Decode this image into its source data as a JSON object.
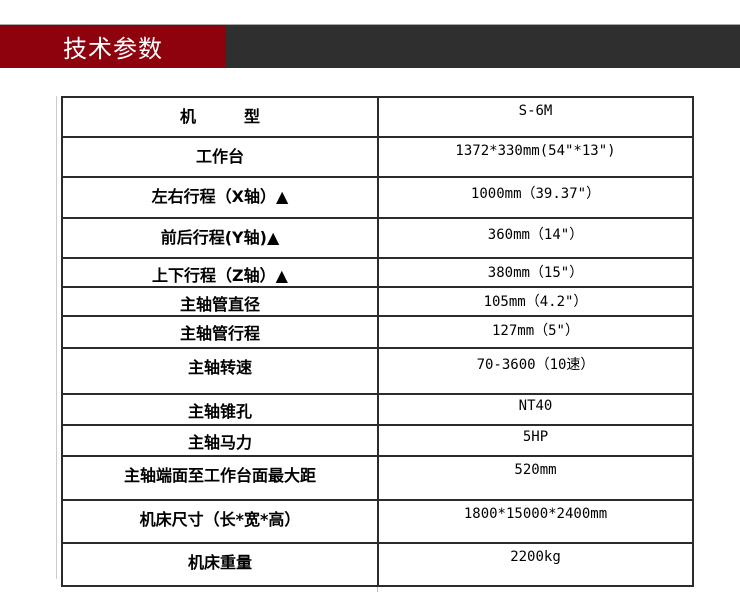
{
  "banner": {
    "title": "技术参数",
    "red_color": "#8e020e",
    "dark_color": "#2f2f2f"
  },
  "table": {
    "header_row": {
      "label": "机　　　型",
      "value": "S-6M"
    },
    "rows": [
      {
        "label": "工作台",
        "value": "1372*330mm(54\"*13\")"
      },
      {
        "label": "左右行程（X轴）▲",
        "value": "1000mm（39.37\"）"
      },
      {
        "label": "前后行程(Y轴)▲",
        "value": "360mm（14\"）"
      },
      {
        "label": "上下行程（Z轴）▲",
        "value": "380mm（15\"）"
      },
      {
        "label": "主轴管直径",
        "value": "105mm（4.2\"）"
      },
      {
        "label": "主轴管行程",
        "value": "127mm（5\"）"
      },
      {
        "label": "主轴转速",
        "value": "70-3600（10速）"
      },
      {
        "label": "主轴锥孔",
        "value": "NT40"
      },
      {
        "label": "主轴马力",
        "value": "5HP"
      },
      {
        "label": "主轴端面至工作台面最大距",
        "value": "520mm"
      },
      {
        "label": "机床尺寸（长*宽*高）",
        "value": "1800*15000*2400mm"
      },
      {
        "label": "机床重量",
        "value": "2200kg"
      }
    ]
  }
}
